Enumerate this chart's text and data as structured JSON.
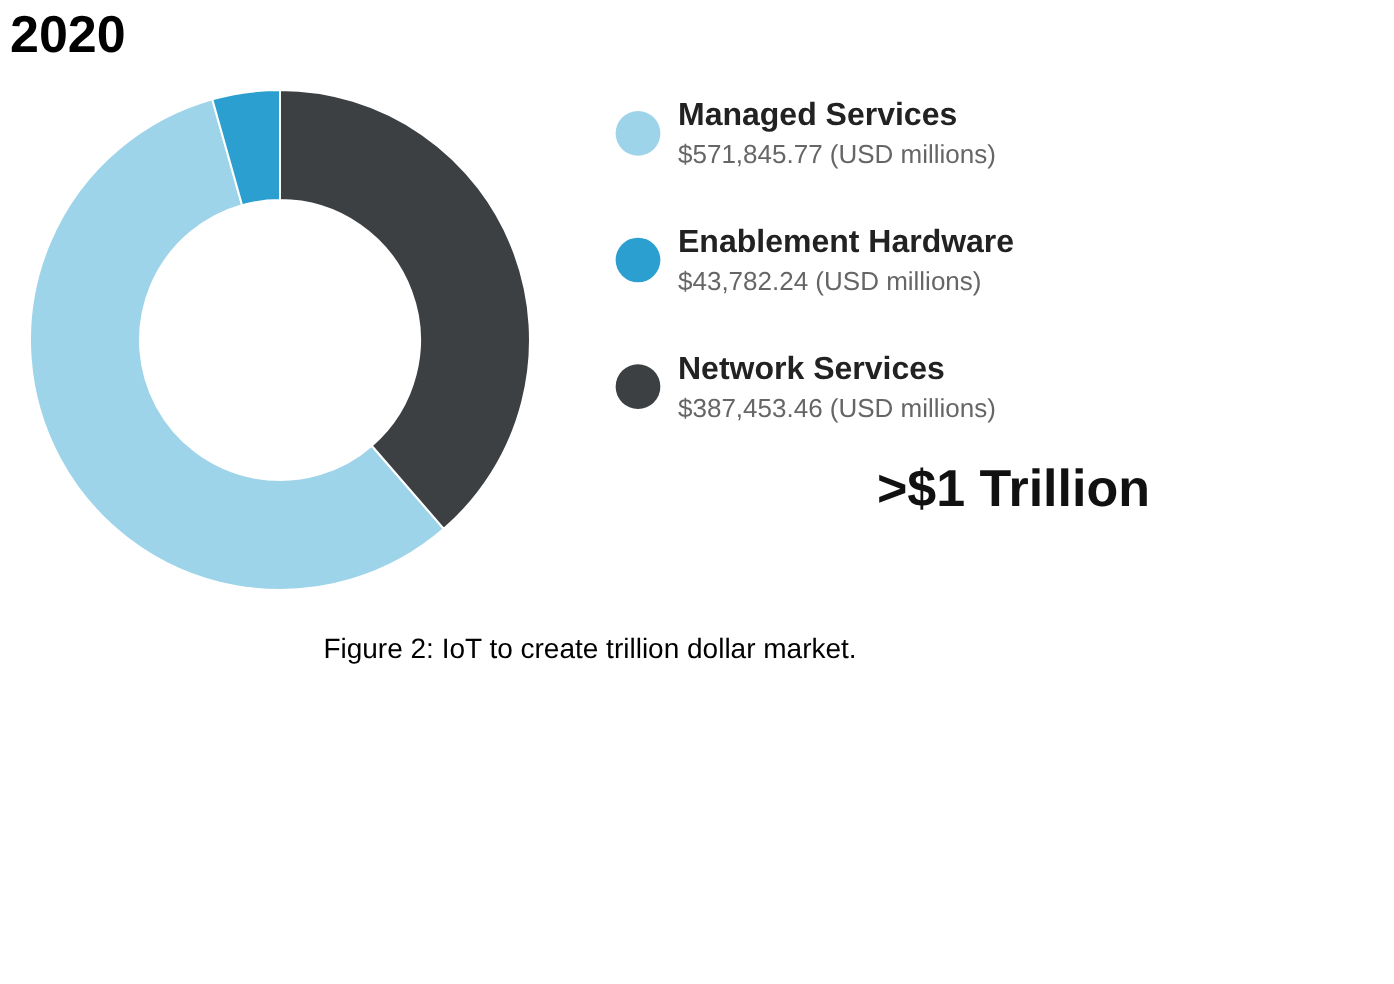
{
  "chart_data": {
    "type": "donut",
    "title": "2020",
    "categories": [
      "Managed Services",
      "Enablement Hardware",
      "Network Services"
    ],
    "values": [
      571845.77,
      43782.24,
      387453.46
    ],
    "colors": [
      "#9dd4ea",
      "#2ba0d0",
      "#3d4043"
    ],
    "value_labels": [
      "$571,845.77 (USD millions)",
      "$43,782.24 (USD millions)",
      "$387,453.46 (USD millions)"
    ],
    "legend": "right",
    "annotations": [
      ">$1 Trillion",
      "Figure 2: IoT to create trillion dollar market."
    ]
  }
}
